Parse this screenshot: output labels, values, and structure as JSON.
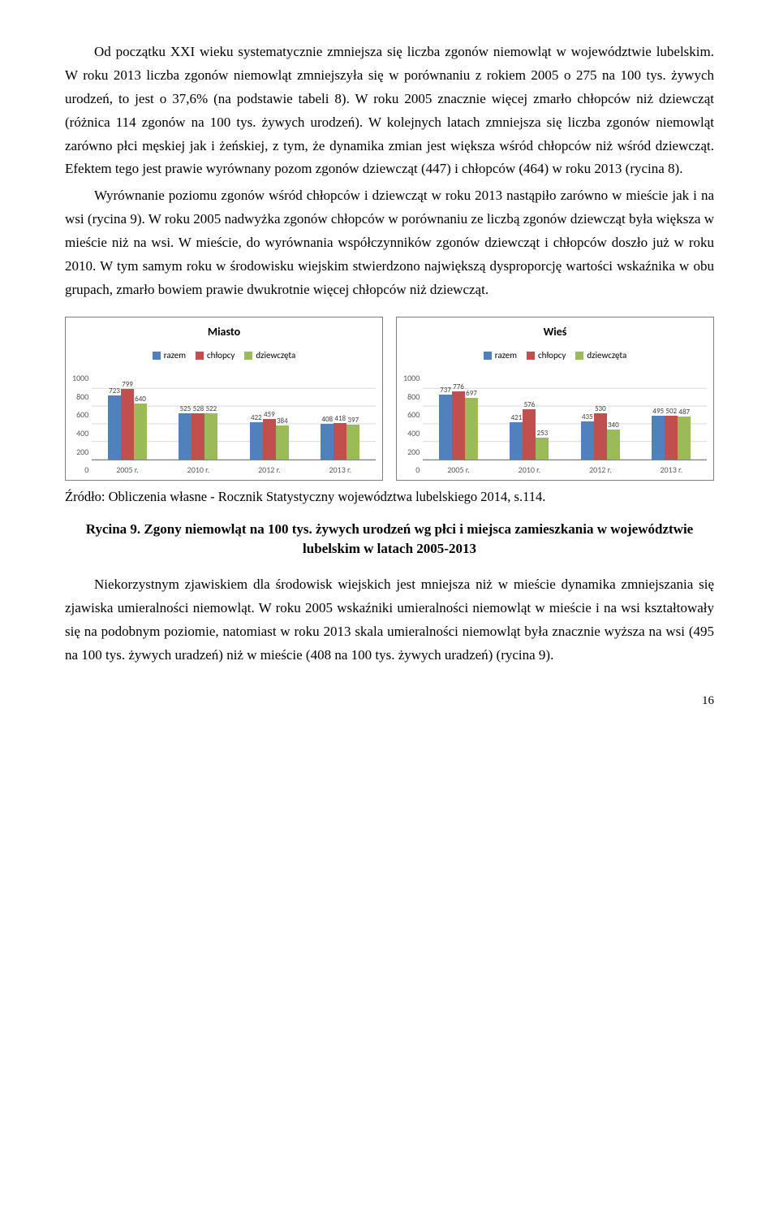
{
  "paragraphs": {
    "p1": "Od początku XXI wieku systematycznie zmniejsza się liczba zgonów niemowląt w województwie lubelskim. W roku 2013 liczba zgonów niemowląt zmniejszyła się w porównaniu z rokiem 2005 o 275 na 100 tys. żywych urodzeń, to jest o 37,6% (na podstawie tabeli 8). W roku 2005 znacznie więcej zmarło chłopców niż dziewcząt (różnica 114 zgonów na 100 tys. żywych urodzeń). W kolejnych latach zmniejsza się liczba zgonów niemowląt zarówno płci męskiej jak i żeńskiej, z tym, że dynamika zmian jest większa wśród chłopców niż wśród dziewcząt. Efektem tego jest prawie wyrównany pozom zgonów dziewcząt (447) i chłopców (464) w roku 2013 (rycina 8).",
    "p2": "Wyrównanie poziomu zgonów wśród chłopców i dziewcząt w roku 2013 nastąpiło zarówno w mieście jak i na wsi (rycina 9). W roku 2005 nadwyżka zgonów chłopców w porównaniu ze liczbą zgonów dziewcząt była większa w mieście niż na wsi. W mieście, do wyrównania współczynników zgonów dziewcząt i chłopców doszło już w roku 2010. W tym samym roku w środowisku wiejskim stwierdzono największą dysproporcję wartości wskaźnika w obu grupach, zmarło bowiem prawie dwukrotnie więcej chłopców niż dziewcząt.",
    "p3": "Niekorzystnym zjawiskiem dla środowisk wiejskich jest mniejsza niż w mieście dynamika zmniejszania się zjawiska umieralności niemowląt. W roku 2005 wskaźniki umieralności niemowląt w mieście i na wsi kształtowały się na podobnym poziomie, natomiast w roku 2013 skala umieralności niemowląt była znacznie wyższa na wsi (495 na 100 tys. żywych uradzeń) niż w mieście (408 na 100 tys. żywych uradzeń) (rycina 9)."
  },
  "legend": {
    "razem": "razem",
    "chlopcy": "chłopcy",
    "dziewczeta": "dziewczęta"
  },
  "colors": {
    "razem": "#4f81bd",
    "chlopcy": "#c0504d",
    "dziewczeta": "#9bbb59",
    "border": "#7f7f7f",
    "grid": "#d9d9d9",
    "text": "#000000"
  },
  "chart_miasto": {
    "title": "Miasto",
    "ylim": 1000,
    "yticks": [
      "1000",
      "800",
      "600",
      "400",
      "200",
      "0"
    ],
    "categories": [
      "2005 r.",
      "2010 r.",
      "2012 r.",
      "2013 r."
    ],
    "series": [
      {
        "razem": 723,
        "chlopcy": 799,
        "dziewczeta": 640
      },
      {
        "razem": 525,
        "chlopcy": 528,
        "dziewczeta": 522
      },
      {
        "razem": 422,
        "chlopcy": 459,
        "dziewczeta": 384
      },
      {
        "razem": 408,
        "chlopcy": 418,
        "dziewczeta": 397
      }
    ]
  },
  "chart_wies": {
    "title": "Wieś",
    "ylim": 1000,
    "yticks": [
      "1000",
      "800",
      "600",
      "400",
      "200",
      "0"
    ],
    "categories": [
      "2005 r.",
      "2010 r.",
      "2012 r.",
      "2013 r."
    ],
    "series": [
      {
        "razem": 737,
        "chlopcy": 776,
        "dziewczeta": 697
      },
      {
        "razem": 421,
        "chlopcy": 576,
        "dziewczeta": 253
      },
      {
        "razem": 435,
        "chlopcy": 530,
        "dziewczeta": 340
      },
      {
        "razem": 495,
        "chlopcy": 502,
        "dziewczeta": 487
      }
    ]
  },
  "source": "Źródło: Obliczenia własne - Rocznik Statystyczny województwa lubelskiego 2014, s.114.",
  "caption": "Rycina 9. Zgony niemowląt na 100 tys. żywych urodzeń wg płci i miejsca zamieszkania w województwie lubelskim w latach 2005-2013",
  "page": "16"
}
